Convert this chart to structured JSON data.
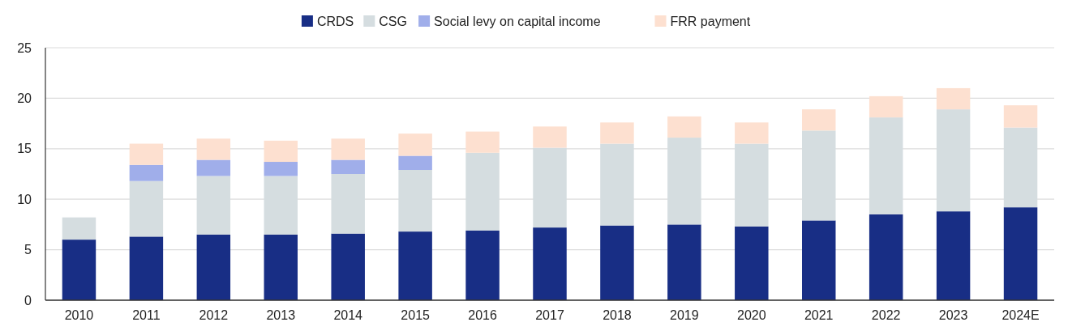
{
  "chart_data": {
    "type": "bar",
    "stacked": true,
    "categories": [
      "2010",
      "2011",
      "2012",
      "2013",
      "2014",
      "2015",
      "2016",
      "2017",
      "2018",
      "2019",
      "2020",
      "2021",
      "2022",
      "2023",
      "2024E"
    ],
    "series": [
      {
        "name": "CRDS",
        "color": "#182e85",
        "values": [
          6.0,
          6.3,
          6.5,
          6.5,
          6.6,
          6.8,
          6.9,
          7.2,
          7.4,
          7.5,
          7.3,
          7.9,
          8.5,
          8.8,
          9.2
        ]
      },
      {
        "name": "CSG",
        "color": "#d5dde0",
        "values": [
          2.2,
          5.5,
          5.8,
          5.8,
          5.9,
          6.1,
          7.7,
          7.9,
          8.1,
          8.6,
          8.2,
          8.9,
          9.6,
          10.1,
          7.9
        ]
      },
      {
        "name": "Social levy on capital income",
        "color": "#a0aeea",
        "values": [
          null,
          1.6,
          1.6,
          1.4,
          1.4,
          1.4,
          null,
          null,
          null,
          null,
          null,
          null,
          null,
          null,
          null
        ]
      },
      {
        "name": "FRR payment",
        "color": "#fde0d0",
        "values": [
          null,
          2.1,
          2.1,
          2.1,
          2.1,
          2.2,
          2.1,
          2.1,
          2.1,
          2.1,
          2.1,
          2.1,
          2.1,
          2.1,
          2.2
        ]
      }
    ],
    "ylim": [
      0,
      25
    ],
    "yticks": [
      0,
      5,
      10,
      15,
      20,
      25
    ],
    "grid": "y",
    "legend": "top"
  }
}
